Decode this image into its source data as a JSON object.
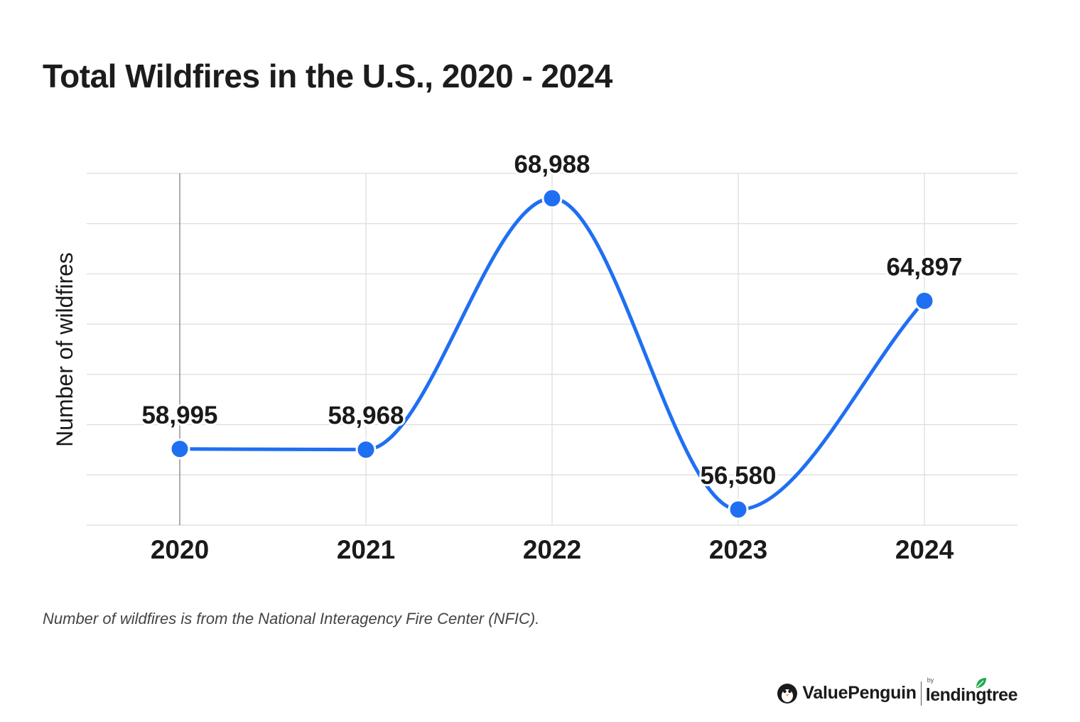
{
  "title": "Total Wildfires in the U.S., 2020 - 2024",
  "note": "Number of wildfires is from the National Interagency Fire Center (NFIC).",
  "brand": {
    "primary": "ValuePenguin",
    "by": "by",
    "partner": "lendingtree"
  },
  "colors": {
    "line": "#1f6ff2",
    "grid": "#dcdcdc",
    "text": "#1a1a1a"
  },
  "chart_data": {
    "type": "line",
    "title": "Total Wildfires in the U.S., 2020 - 2024",
    "xlabel": "",
    "ylabel": "Number of wildfires",
    "categories": [
      "2020",
      "2021",
      "2022",
      "2023",
      "2024"
    ],
    "series": [
      {
        "values": [
          58995,
          58968,
          68988,
          56580,
          64897
        ],
        "labels": [
          "58,995",
          "58,968",
          "68,988",
          "56,580",
          "64,897"
        ]
      }
    ],
    "ylim": [
      56000,
      70000
    ],
    "grid": true,
    "smooth": true
  }
}
